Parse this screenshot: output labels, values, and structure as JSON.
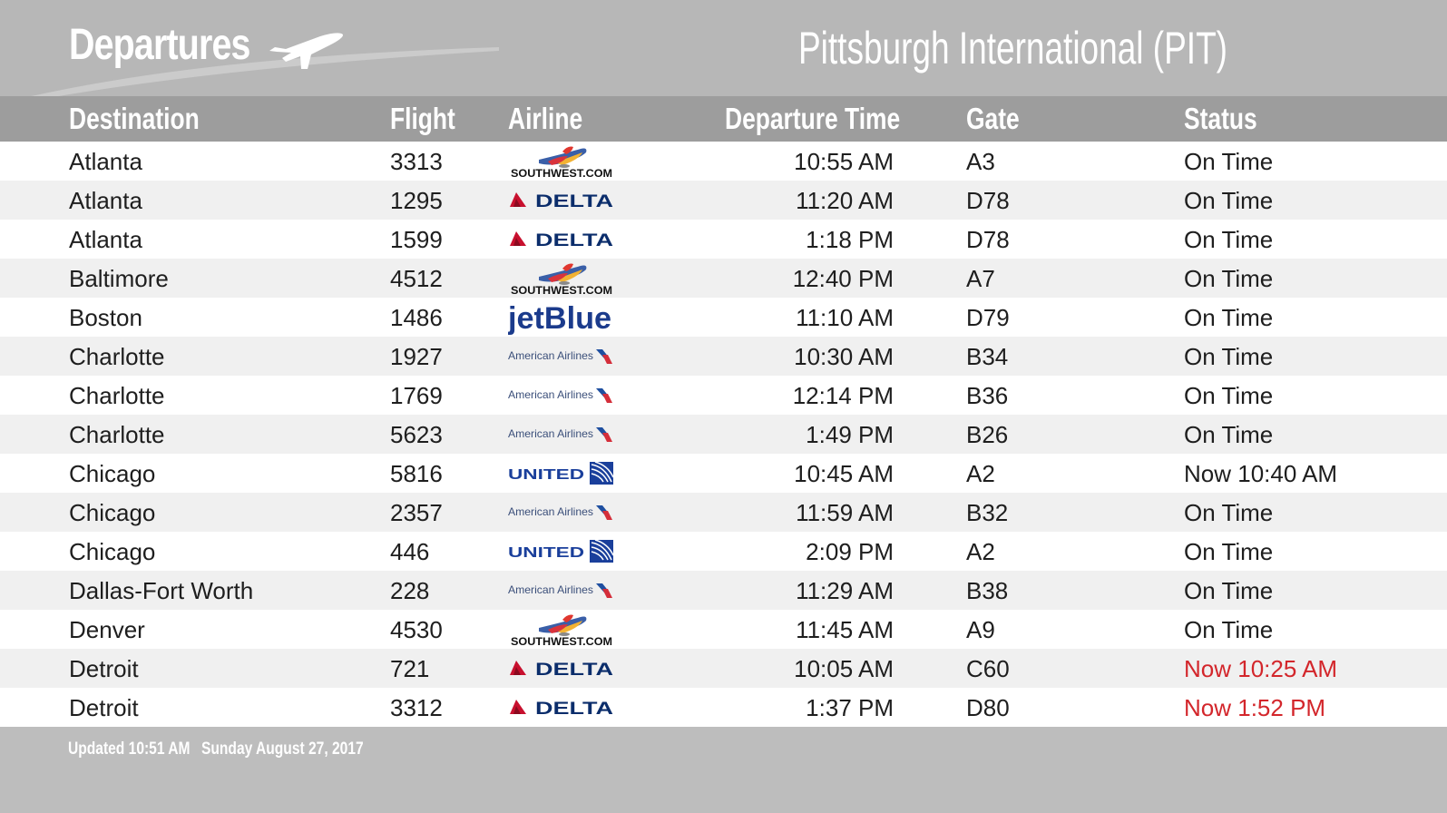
{
  "header": {
    "title": "Departures",
    "airport": "Pittsburgh International (PIT)"
  },
  "columns": {
    "destination": "Destination",
    "flight": "Flight",
    "airline": "Airline",
    "departure_time": "Departure Time",
    "gate": "Gate",
    "status": "Status"
  },
  "colors": {
    "header_bg": "#b7b7b7",
    "column_header_bg": "#9d9d9d",
    "footer_bg": "#bdbdbd",
    "delayed_status": "#d3262b"
  },
  "flights": [
    {
      "destination": "Atlanta",
      "flight": "3313",
      "airline": "southwest",
      "logo_text": "SOUTHWEST.COM",
      "time": "10:55 AM",
      "gate": "A3",
      "status": "On Time",
      "delayed": false
    },
    {
      "destination": "Atlanta",
      "flight": "1295",
      "airline": "delta",
      "logo_text": "DELTA",
      "time": "11:20 AM",
      "gate": "D78",
      "status": "On Time",
      "delayed": false
    },
    {
      "destination": "Atlanta",
      "flight": "1599",
      "airline": "delta",
      "logo_text": "DELTA",
      "time": "1:18 PM",
      "gate": "D78",
      "status": "On Time",
      "delayed": false
    },
    {
      "destination": "Baltimore",
      "flight": "4512",
      "airline": "southwest",
      "logo_text": "SOUTHWEST.COM",
      "time": "12:40 PM",
      "gate": "A7",
      "status": "On Time",
      "delayed": false
    },
    {
      "destination": "Boston",
      "flight": "1486",
      "airline": "jetblue",
      "logo_text": "jetBlue",
      "time": "11:10 AM",
      "gate": "D79",
      "status": "On Time",
      "delayed": false
    },
    {
      "destination": "Charlotte",
      "flight": "1927",
      "airline": "american",
      "logo_text": "American Airlines",
      "time": "10:30 AM",
      "gate": "B34",
      "status": "On Time",
      "delayed": false
    },
    {
      "destination": "Charlotte",
      "flight": "1769",
      "airline": "american",
      "logo_text": "American Airlines",
      "time": "12:14 PM",
      "gate": "B36",
      "status": "On Time",
      "delayed": false
    },
    {
      "destination": "Charlotte",
      "flight": "5623",
      "airline": "american",
      "logo_text": "American Airlines",
      "time": "1:49 PM",
      "gate": "B26",
      "status": "On Time",
      "delayed": false
    },
    {
      "destination": "Chicago",
      "flight": "5816",
      "airline": "united",
      "logo_text": "UNITED",
      "time": "10:45 AM",
      "gate": "A2",
      "status": "Now 10:40 AM",
      "delayed": false
    },
    {
      "destination": "Chicago",
      "flight": "2357",
      "airline": "american",
      "logo_text": "American Airlines",
      "time": "11:59 AM",
      "gate": "B32",
      "status": "On Time",
      "delayed": false
    },
    {
      "destination": "Chicago",
      "flight": "446",
      "airline": "united",
      "logo_text": "UNITED",
      "time": "2:09 PM",
      "gate": "A2",
      "status": "On Time",
      "delayed": false
    },
    {
      "destination": "Dallas-Fort Worth",
      "flight": "228",
      "airline": "american",
      "logo_text": "American Airlines",
      "time": "11:29 AM",
      "gate": "B38",
      "status": "On Time",
      "delayed": false
    },
    {
      "destination": "Denver",
      "flight": "4530",
      "airline": "southwest",
      "logo_text": "SOUTHWEST.COM",
      "time": "11:45 AM",
      "gate": "A9",
      "status": "On Time",
      "delayed": false
    },
    {
      "destination": "Detroit",
      "flight": "721",
      "airline": "delta",
      "logo_text": "DELTA",
      "time": "10:05 AM",
      "gate": "C60",
      "status": "Now 10:25 AM",
      "delayed": true
    },
    {
      "destination": "Detroit",
      "flight": "3312",
      "airline": "delta",
      "logo_text": "DELTA",
      "time": "1:37 PM",
      "gate": "D80",
      "status": "Now 1:52 PM",
      "delayed": true
    }
  ],
  "footer": {
    "updated": "Updated 10:51 AM",
    "date": "Sunday August 27, 2017"
  }
}
